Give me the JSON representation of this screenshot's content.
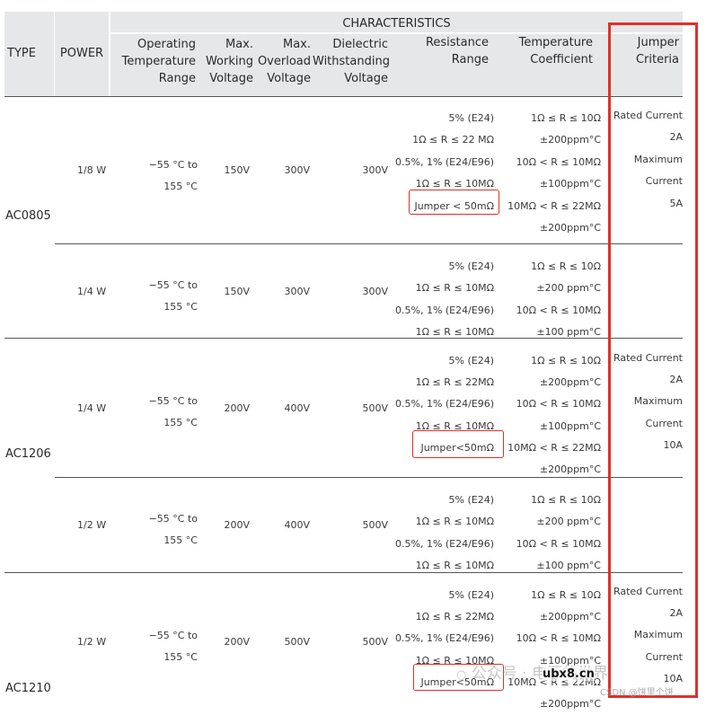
{
  "header": {
    "characteristics": "CHARACTERISTICS",
    "type": "TYPE",
    "power": "POWER",
    "op_temp": [
      "Operating",
      "Temperature",
      "Range"
    ],
    "max_working": [
      "Max.",
      "Working",
      "Voltage"
    ],
    "max_overload": [
      "Max.",
      "Overload",
      "Voltage"
    ],
    "dielectric": [
      "Dielectric",
      "Withstanding",
      "Voltage"
    ],
    "resistance": [
      "Resistance",
      "Range"
    ],
    "temp_coef": [
      "Temperature",
      "Coefficient"
    ],
    "jumper": [
      "Jumper",
      "Criteria"
    ]
  },
  "groups": [
    {
      "model": "AC0805",
      "jumper": [
        "Rated Current",
        "2A",
        "Maximum",
        "Current",
        "5A"
      ],
      "rows": [
        {
          "power": "1/8 W",
          "temp": [
            "−55 °C to",
            "155 °C"
          ],
          "working": "150V",
          "overload": "300V",
          "dielectric": "300V",
          "resistance": [
            "5% (E24)",
            "1Ω ≤ R ≤ 22 MΩ",
            "0.5%, 1% (E24/E96)",
            "1Ω ≤ R ≤ 10MΩ",
            "Jumper < 50mΩ"
          ],
          "tcr": [
            "1Ω ≤ R ≤ 10Ω",
            "±200ppm°C",
            "10Ω < R ≤ 10MΩ",
            "±100ppm°C",
            "10MΩ < R ≤ 22MΩ",
            "±200ppm°C"
          ]
        },
        {
          "power": "1/4 W",
          "temp": [
            "−55 °C to",
            "155 °C"
          ],
          "working": "150V",
          "overload": "300V",
          "dielectric": "300V",
          "resistance": [
            "5% (E24)",
            "1Ω ≤ R ≤ 10MΩ",
            "0.5%, 1% (E24/E96)",
            "1Ω ≤ R ≤ 10MΩ"
          ],
          "tcr": [
            "1Ω ≤ R ≤ 10Ω",
            "±200 ppm°C",
            "10Ω < R ≤ 10MΩ",
            "±100 ppm°C"
          ]
        }
      ]
    },
    {
      "model": "AC1206",
      "jumper": [
        "Rated Current",
        "2A",
        "Maximum",
        "Current",
        "10A"
      ],
      "rows": [
        {
          "power": "1/4 W",
          "temp": [
            "−55 °C to",
            "155 °C"
          ],
          "working": "200V",
          "overload": "400V",
          "dielectric": "500V",
          "resistance": [
            "5% (E24)",
            "1Ω ≤ R ≤ 22MΩ",
            "0.5%, 1% (E24/E96)",
            "1Ω ≤ R ≤ 10MΩ",
            "Jumper<50mΩ"
          ],
          "tcr": [
            "1Ω ≤ R ≤ 10Ω",
            "±200ppm°C",
            "10Ω < R ≤ 10MΩ",
            "±100ppm°C",
            "10MΩ < R ≤ 22MΩ",
            "±200ppm°C"
          ]
        },
        {
          "power": "1/2 W",
          "temp": [
            "−55 °C to",
            "155 °C"
          ],
          "working": "200V",
          "overload": "400V",
          "dielectric": "500V",
          "resistance": [
            "5% (E24)",
            "1Ω ≤ R ≤ 10MΩ",
            "0.5%, 1% (E24/E96)",
            "1Ω ≤ R ≤ 10MΩ"
          ],
          "tcr": [
            "1Ω ≤ R ≤ 10Ω",
            "±200 ppm°C",
            "10Ω < R ≤ 10MΩ",
            "±100 ppm°C"
          ]
        }
      ]
    },
    {
      "model": "AC1210",
      "jumper": [
        "Rated Current",
        "2A",
        "Maximum",
        "Current",
        "10A"
      ],
      "rows": [
        {
          "power": "1/2 W",
          "temp": [
            "−55 °C to",
            "155 °C"
          ],
          "working": "200V",
          "overload": "500V",
          "dielectric": "500V",
          "resistance": [
            "5% (E24)",
            "1Ω ≤ R ≤ 22MΩ",
            "0.5%, 1% (E24/E96)",
            "1Ω ≤ R ≤ 10MΩ",
            "Jumper<50mΩ"
          ],
          "tcr": [
            "1Ω ≤ R ≤ 10Ω",
            "±200ppm°C",
            "10Ω < R ≤ 10MΩ",
            "±100ppm°C",
            "10MΩ < R ≤ 22MΩ",
            "±200ppm°C"
          ]
        }
      ]
    }
  ],
  "watermark": {
    "wechat": "公众号 · 电源的世界",
    "site": "ubx8.cn",
    "csdn": "CSDN @饼里个饼"
  },
  "colors": {
    "header_bg": "#e6e7e8",
    "highlight": "#e0302a",
    "rule": "#555555"
  }
}
